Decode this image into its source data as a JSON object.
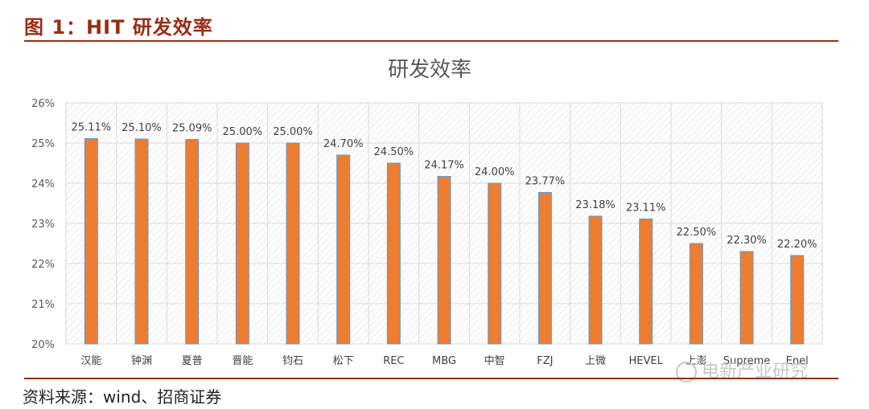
{
  "figure": {
    "label": "图 1：HIT 研发效率",
    "source": "资料来源：wind、招商证券"
  },
  "watermark": {
    "text": "电新产业研究"
  },
  "colors": {
    "bar": "#ed7d31",
    "bar_edge": "#5b9bd5",
    "title_red": "#9a2d14",
    "grid": "#d9d9d9",
    "hatch": "#e4e4e4"
  },
  "chart_data": {
    "type": "bar",
    "title": "研发效率",
    "categories": [
      "汉能",
      "钟渊",
      "夏普",
      "晋能",
      "钧石",
      "松下",
      "REC",
      "MBG",
      "中智",
      "FZJ",
      "上微",
      "HEVEL",
      "上澎",
      "Supreme",
      "Enel"
    ],
    "values": [
      25.11,
      25.1,
      25.09,
      25.0,
      25.0,
      24.7,
      24.5,
      24.17,
      24.0,
      23.77,
      23.18,
      23.11,
      22.5,
      22.3,
      22.2
    ],
    "data_labels": [
      "25.11%",
      "25.10%",
      "25.09%",
      "25.00%",
      "25.00%",
      "24.70%",
      "24.50%",
      "24.17%",
      "24.00%",
      "23.77%",
      "23.18%",
      "23.11%",
      "22.50%",
      "22.30%",
      "22.20%"
    ],
    "yticks": [
      "20%",
      "21%",
      "22%",
      "23%",
      "24%",
      "25%",
      "26%"
    ],
    "ylim": [
      20,
      26
    ],
    "xlabel": "",
    "ylabel": "",
    "grid": true,
    "legend": "none"
  }
}
